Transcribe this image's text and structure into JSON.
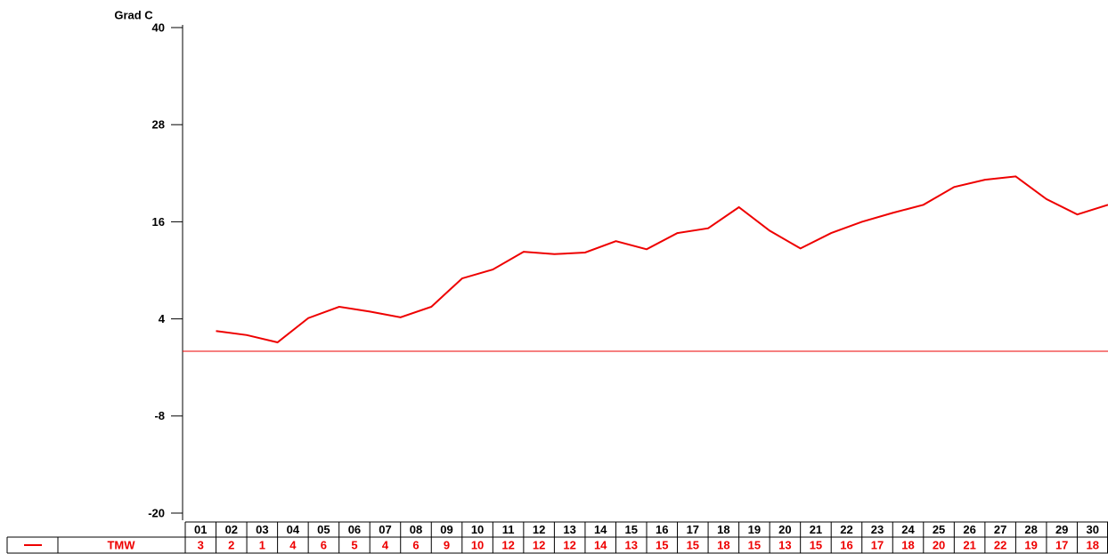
{
  "chart_data": {
    "type": "line",
    "y_label": "Grad C",
    "categories": [
      "01",
      "02",
      "03",
      "04",
      "05",
      "06",
      "07",
      "08",
      "09",
      "10",
      "11",
      "12",
      "13",
      "14",
      "15",
      "16",
      "17",
      "18",
      "19",
      "20",
      "21",
      "22",
      "23",
      "24",
      "25",
      "26",
      "27",
      "28",
      "29",
      "30"
    ],
    "series": [
      {
        "name": "TMW",
        "color": "#ee0000",
        "values": [
          2.5,
          2.0,
          1.1,
          4.1,
          5.5,
          4.9,
          4.2,
          5.5,
          9.0,
          10.1,
          12.3,
          12.0,
          12.2,
          13.6,
          12.6,
          14.6,
          15.2,
          17.8,
          14.9,
          12.7,
          14.6,
          16.0,
          17.1,
          18.1,
          20.3,
          21.2,
          21.6,
          18.8,
          16.9,
          18.1
        ],
        "value_labels": [
          "3",
          "2",
          "1",
          "4",
          "6",
          "5",
          "4",
          "6",
          "9",
          "10",
          "12",
          "12",
          "12",
          "14",
          "13",
          "15",
          "15",
          "18",
          "15",
          "13",
          "15",
          "16",
          "17",
          "18",
          "20",
          "21",
          "22",
          "19",
          "17",
          "18"
        ]
      }
    ],
    "reference_line": 0,
    "ylim": [
      -20,
      40
    ],
    "yticks": [
      -20,
      -8,
      4,
      16,
      28,
      40
    ]
  }
}
